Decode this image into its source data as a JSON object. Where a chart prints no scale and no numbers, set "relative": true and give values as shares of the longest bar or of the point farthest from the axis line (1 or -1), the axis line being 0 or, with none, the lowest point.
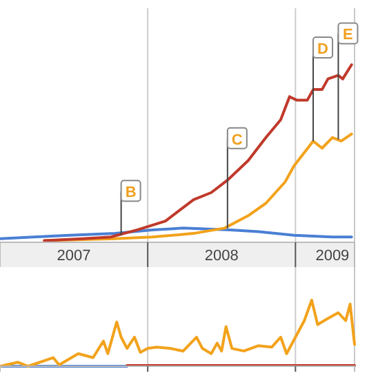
{
  "chart_data": [
    {
      "type": "line",
      "relative": true,
      "xlim": [
        2007,
        2009.4
      ],
      "grid": "x",
      "xticks": [
        {
          "value": 2008,
          "label": null
        },
        {
          "value": 2009,
          "label": null
        },
        {
          "value": 2007.5,
          "label": "2007"
        },
        {
          "value": 2008.5,
          "label": "2008"
        },
        {
          "value": 2009.25,
          "label": "2009"
        }
      ],
      "series": [
        {
          "color": "#4a7fd4",
          "x": [
            2007.0,
            2007.23,
            2007.47,
            2007.78,
            2008.03,
            2008.24,
            2008.56,
            2008.75,
            2008.99,
            2009.25,
            2009.38
          ],
          "values": [
            0.02,
            0.03,
            0.04,
            0.05,
            0.07,
            0.08,
            0.07,
            0.06,
            0.04,
            0.03,
            0.03
          ]
        },
        {
          "color": "#f2a21b",
          "x": [
            2007.3,
            2007.78,
            2008.03,
            2008.31,
            2008.52,
            2008.68,
            2008.8,
            2008.93,
            2008.99,
            2009.12,
            2009.18,
            2009.25,
            2009.31,
            2009.38
          ],
          "values": [
            0.01,
            0.02,
            0.03,
            0.05,
            0.08,
            0.15,
            0.22,
            0.34,
            0.43,
            0.57,
            0.53,
            0.59,
            0.57,
            0.61
          ]
        },
        {
          "color": "#c0392b",
          "x": [
            2007.3,
            2007.56,
            2007.75,
            2007.93,
            2008.12,
            2008.31,
            2008.43,
            2008.54,
            2008.68,
            2008.8,
            2008.9,
            2008.96,
            2009.01,
            2009.08,
            2009.12,
            2009.18,
            2009.22,
            2009.29,
            2009.32,
            2009.38
          ],
          "values": [
            0.01,
            0.02,
            0.03,
            0.07,
            0.12,
            0.24,
            0.28,
            0.35,
            0.46,
            0.59,
            0.69,
            0.82,
            0.8,
            0.8,
            0.86,
            0.86,
            0.92,
            0.94,
            0.92,
            1
          ]
        }
      ],
      "annotations": [
        {
          "text": "B",
          "x": 2007.82,
          "y": 0.04
        },
        {
          "text": "C",
          "x": 2008.54,
          "y": 0.08
        },
        {
          "text": "D",
          "x": 2009.12,
          "y": 0.57
        },
        {
          "text": "E",
          "x": 2009.29,
          "y": 0.58
        }
      ]
    },
    {
      "type": "line",
      "relative": true,
      "xlim": [
        2007,
        2009.4
      ],
      "grid": "x",
      "tick_labels": false,
      "xticks": [
        {
          "value": 2008,
          "label": null
        },
        {
          "value": 2009,
          "label": null
        }
      ],
      "series": [
        {
          "color": "#4a7fd4",
          "x": [
            2007.0,
            2007.86
          ],
          "values": [
            0,
            0
          ]
        },
        {
          "color": "#c0392b",
          "x": [
            2007.86,
            2009.4
          ],
          "values": [
            0.01,
            0.01
          ]
        },
        {
          "color": "#f2a21b",
          "x": [
            2007.0,
            2007.12,
            2007.19,
            2007.36,
            2007.4,
            2007.53,
            2007.63,
            2007.7,
            2007.73,
            2007.79,
            2007.82,
            2007.86,
            2007.91,
            2007.95,
            2008.0,
            2008.06,
            2008.15,
            2008.24,
            2008.33,
            2008.37,
            2008.43,
            2008.47,
            2008.5,
            2008.53,
            2008.57,
            2008.65,
            2008.75,
            2008.84,
            2008.9,
            2008.94,
            2009.0,
            2009.06,
            2009.11,
            2009.15,
            2009.21,
            2009.29,
            2009.34,
            2009.37,
            2009.4
          ],
          "values": [
            0,
            0.06,
            0,
            0.13,
            0.02,
            0.19,
            0.13,
            0.38,
            0.19,
            0.67,
            0.44,
            0.27,
            0.44,
            0.21,
            0.27,
            0.29,
            0.27,
            0.23,
            0.44,
            0.27,
            0.19,
            0.35,
            0.23,
            0.6,
            0.27,
            0.23,
            0.31,
            0.29,
            0.44,
            0.19,
            0.44,
            0.69,
            1,
            0.63,
            0.71,
            0.81,
            0.69,
            0.94,
            0.33
          ]
        }
      ]
    }
  ]
}
